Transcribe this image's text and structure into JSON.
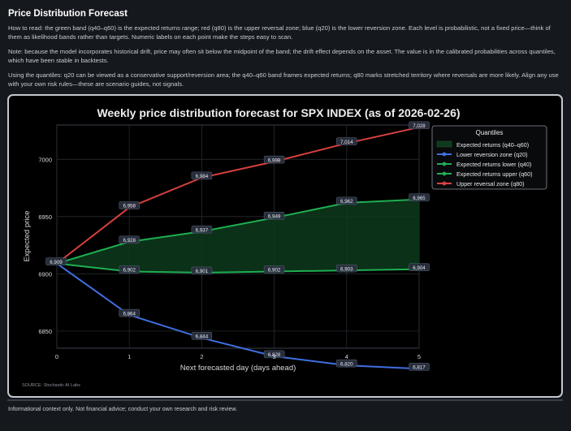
{
  "header": {
    "title": "Price Distribution Forecast",
    "paragraph1": "How to read: the green band (q40–q60) is the expected returns range; red (q80) is the upper reversal zone; blue (q20) is the lower reversion zone. Each level is probabilistic, not a fixed price—think of them as likelihood bands rather than targets. Numeric labels on each point make the steps easy to scan.",
    "paragraph2": "Note: because the model incorporates historical drift, price may often sit below the midpoint of the band; the drift effect depends on the asset. The value is in the calibrated probabilities across quantiles, which have been stable in backtests.",
    "paragraph3": "Using the quantiles: q20 can be viewed as a conservative support/reversion area; the q40–q60 band frames expected returns; q80 marks stretched territory where reversals are more likely. Align any use with your own risk rules—these are scenario guides, not signals."
  },
  "footer": {
    "disclaimer": "Informational context only. Not financial advice; conduct your own research and risk review."
  },
  "chart_data": {
    "type": "line",
    "title": "Weekly price distribution forecast for SPX INDEX (as of 2026-02-26)",
    "xlabel": "Next forecasted day (days ahead)",
    "ylabel": "Expected price",
    "source": "SOURCE: Stochastic AI Labs",
    "x": [
      0,
      1,
      2,
      3,
      4,
      5
    ],
    "xlim": [
      0,
      5
    ],
    "ylim": [
      6835,
      7030
    ],
    "xticks": [
      "0",
      "1",
      "2",
      "3",
      "4",
      "5"
    ],
    "yticks": [
      6850,
      6900,
      6950,
      7000
    ],
    "grid": true,
    "legend": {
      "title": "Quantiles",
      "placement": "top-right",
      "entries": [
        "Expected returns (q40–q60)",
        "Lower reversion zone (q20)",
        "Expected returns lower (q40)",
        "Expected returns upper (q60)",
        "Upper reversal zone (q80)"
      ]
    },
    "band": {
      "name": "Expected returns (q40–q60)",
      "lower": "q40",
      "upper": "q60",
      "color": "#0d3a1c"
    },
    "series": [
      {
        "key": "q20",
        "name": "Lower reversion zone (q20)",
        "color": "#3f6fe0",
        "values": [
          6909,
          6864,
          6844,
          6828,
          6820,
          6817
        ]
      },
      {
        "key": "q40",
        "name": "Expected returns lower (q40)",
        "color": "#1fae52",
        "values": [
          6909,
          6902,
          6901,
          6902,
          6903,
          6904
        ]
      },
      {
        "key": "q60",
        "name": "Expected returns upper (q60)",
        "color": "#1fae52",
        "values": [
          6909,
          6928,
          6937,
          6949,
          6962,
          6965
        ]
      },
      {
        "key": "q80",
        "name": "Upper reversal zone (q80)",
        "color": "#d94040",
        "values": [
          6909,
          6958,
          6984,
          6998,
          7014,
          7028
        ]
      }
    ]
  }
}
